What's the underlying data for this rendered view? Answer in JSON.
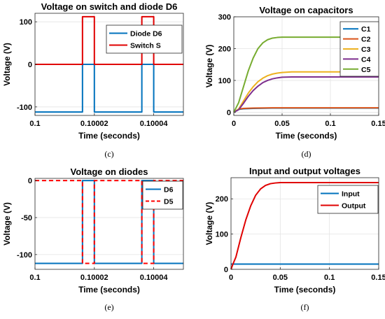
{
  "chart_data": [
    {
      "id": "c",
      "type": "line",
      "title": "Voltage on switch and diode D6",
      "xlabel": "Time (seconds)",
      "ylabel": "Voltage (V)",
      "caption": "(c)",
      "xlim": [
        0.1,
        0.10005
      ],
      "ylim": [
        -120,
        120
      ],
      "x_ticks": [
        0.1,
        0.10002,
        0.10004
      ],
      "x_tick_labels": [
        "0.1",
        "0.10002",
        "0.10004"
      ],
      "y_ticks": [
        -100,
        0,
        100
      ],
      "y_tick_labels": [
        "-100",
        "0",
        "100"
      ],
      "grid": true,
      "legend_position": "top-right",
      "series": [
        {
          "name": "Diode D6",
          "color": "#0072bd",
          "x": [
            0.1,
            0.100016,
            0.100016,
            0.10002,
            0.10002,
            0.100036,
            0.100036,
            0.10004,
            0.10004,
            0.10005
          ],
          "y": [
            -112,
            -112,
            0,
            0,
            -112,
            -112,
            0,
            0,
            -112,
            -112
          ]
        },
        {
          "name": "Switch S",
          "color": "#e00000",
          "x": [
            0.1,
            0.100016,
            0.100016,
            0.10002,
            0.10002,
            0.100036,
            0.100036,
            0.10004,
            0.10004,
            0.10005
          ],
          "y": [
            0,
            0,
            112,
            112,
            0,
            0,
            112,
            112,
            0,
            0
          ]
        }
      ]
    },
    {
      "id": "d",
      "type": "line",
      "title": "Voltage on capacitors",
      "xlabel": "Time (seconds)",
      "ylabel": "Voltage (V)",
      "caption": "(d)",
      "xlim": [
        0,
        0.15
      ],
      "ylim": [
        -10,
        300
      ],
      "x_ticks": [
        0,
        0.05,
        0.1,
        0.15
      ],
      "x_tick_labels": [
        "0",
        "0.05",
        "0.1",
        "0.15"
      ],
      "y_ticks": [
        0,
        100,
        200,
        300
      ],
      "y_tick_labels": [
        "0",
        "100",
        "200",
        "300"
      ],
      "grid": true,
      "legend_position": "top-right",
      "series": [
        {
          "name": "C1",
          "color": "#0072bd",
          "x": [
            0,
            0.005,
            0.01,
            0.02,
            0.04,
            0.06,
            0.1,
            0.15
          ],
          "y": [
            0,
            9,
            11,
            12,
            13,
            13,
            13,
            13
          ]
        },
        {
          "name": "C2",
          "color": "#d95319",
          "x": [
            0,
            0.005,
            0.01,
            0.02,
            0.04,
            0.06,
            0.1,
            0.15
          ],
          "y": [
            0,
            10,
            12,
            13,
            14,
            14,
            14,
            14
          ]
        },
        {
          "name": "C3",
          "color": "#edb120",
          "x": [
            0,
            0.005,
            0.01,
            0.015,
            0.02,
            0.025,
            0.03,
            0.035,
            0.04,
            0.045,
            0.05,
            0.06,
            0.08,
            0.1,
            0.15
          ],
          "y": [
            0,
            10,
            35,
            60,
            80,
            96,
            107,
            115,
            120,
            123,
            125,
            127,
            127,
            127,
            127
          ]
        },
        {
          "name": "C4",
          "color": "#7e2f8e",
          "x": [
            0,
            0.005,
            0.01,
            0.015,
            0.02,
            0.025,
            0.03,
            0.035,
            0.04,
            0.045,
            0.05,
            0.06,
            0.08,
            0.1,
            0.15
          ],
          "y": [
            0,
            8,
            28,
            50,
            68,
            82,
            93,
            100,
            105,
            108,
            110,
            111,
            111,
            111,
            111
          ]
        },
        {
          "name": "C5",
          "color": "#77ac30",
          "x": [
            0,
            0.005,
            0.01,
            0.015,
            0.02,
            0.025,
            0.03,
            0.035,
            0.04,
            0.045,
            0.05,
            0.06,
            0.08,
            0.1,
            0.15
          ],
          "y": [
            0,
            30,
            80,
            130,
            170,
            200,
            218,
            228,
            233,
            235,
            236,
            236,
            236,
            236,
            236
          ]
        }
      ]
    },
    {
      "id": "e",
      "type": "line",
      "title": "Voltage on diodes",
      "xlabel": "Time (seconds)",
      "ylabel": "Voltage (V)",
      "caption": "(e)",
      "xlim": [
        0.1,
        0.10005
      ],
      "ylim": [
        -120,
        3
      ],
      "x_ticks": [
        0.1,
        0.10002,
        0.10004
      ],
      "x_tick_labels": [
        "0.1",
        "0.10002",
        "0.10004"
      ],
      "y_ticks": [
        -100,
        -50,
        0
      ],
      "y_tick_labels": [
        "-100",
        "-50",
        "0"
      ],
      "grid": true,
      "legend_position": "top-right",
      "series": [
        {
          "name": "D6",
          "color": "#0072bd",
          "dashed": false,
          "x": [
            0.1,
            0.100016,
            0.100016,
            0.10002,
            0.10002,
            0.100036,
            0.100036,
            0.10004,
            0.10004,
            0.10005
          ],
          "y": [
            -112,
            -112,
            0,
            0,
            -112,
            -112,
            0,
            0,
            -112,
            -112
          ]
        },
        {
          "name": "D5",
          "color": "#ff0000",
          "dashed": true,
          "x": [
            0.1,
            0.100016,
            0.100016,
            0.10002,
            0.10002,
            0.100036,
            0.100036,
            0.10004,
            0.10004,
            0.10005
          ],
          "y": [
            0,
            0,
            -112,
            -112,
            0,
            0,
            -112,
            -112,
            0,
            0
          ]
        }
      ]
    },
    {
      "id": "f",
      "type": "line",
      "title": "Input and output voltages",
      "xlabel": "Time (seconds)",
      "ylabel": "Voltage (V)",
      "caption": "(f)",
      "xlim": [
        0,
        0.15
      ],
      "ylim": [
        0,
        260
      ],
      "x_ticks": [
        0,
        0.05,
        0.1,
        0.15
      ],
      "x_tick_labels": [
        "0",
        "0.05",
        "0.1",
        "0.15"
      ],
      "y_ticks": [
        0,
        100,
        200
      ],
      "y_tick_labels": [
        "0",
        "100",
        "200"
      ],
      "grid": true,
      "legend_position": "top-right",
      "series": [
        {
          "name": "Input",
          "color": "#0072bd",
          "x": [
            0,
            0.15
          ],
          "y": [
            15,
            15
          ]
        },
        {
          "name": "Output",
          "color": "#e00000",
          "x": [
            0,
            0.002,
            0.005,
            0.01,
            0.015,
            0.02,
            0.025,
            0.03,
            0.035,
            0.04,
            0.045,
            0.05,
            0.06,
            0.08,
            0.1,
            0.15
          ],
          "y": [
            0,
            15,
            35,
            90,
            140,
            180,
            210,
            228,
            238,
            243,
            245,
            246,
            246,
            246,
            246,
            246
          ]
        }
      ]
    }
  ]
}
